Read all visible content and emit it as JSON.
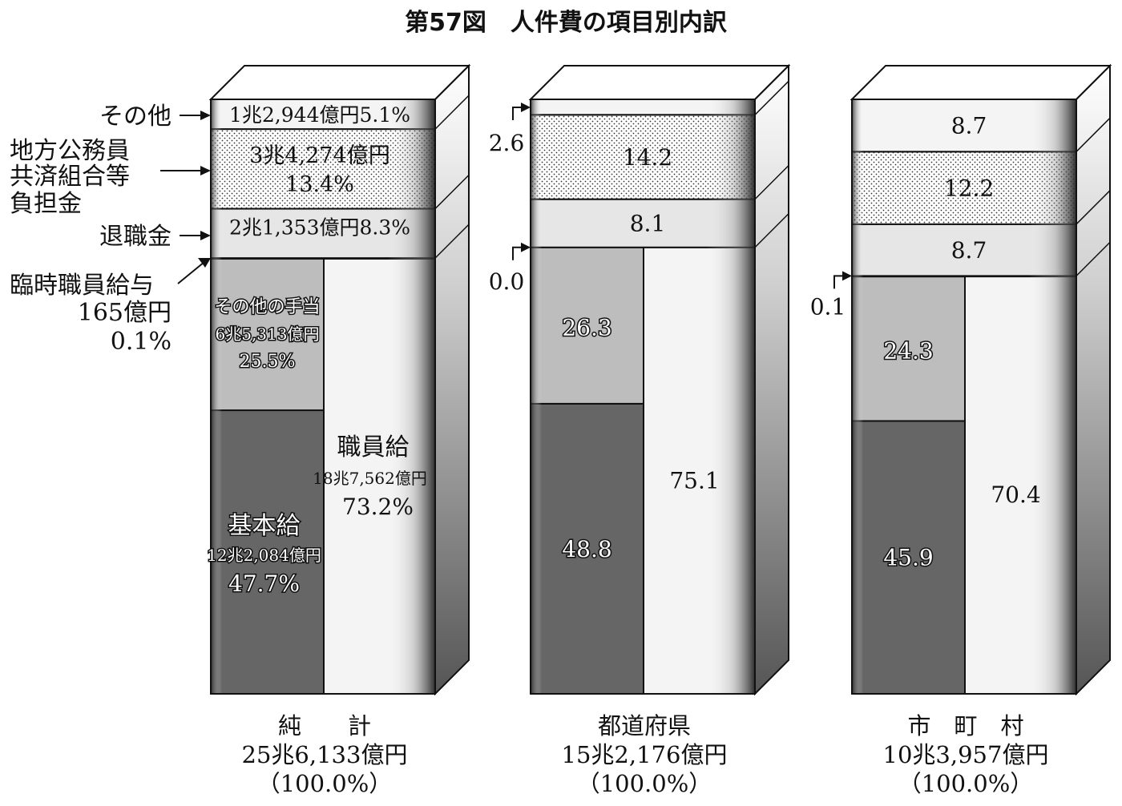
{
  "chart_data": {
    "type": "stacked-bar-3d",
    "title": "第57図　人件費の項目別内訳",
    "columns": [
      {
        "name_line1": "純　　計",
        "name_line2": "25兆6,133億円",
        "name_line3": "（100.0%）",
        "segments": [
          {
            "key": "kihonkyu",
            "value": 47.7,
            "label": "基本給",
            "amount": "12兆2,084億円",
            "pct": "47.7%"
          },
          {
            "key": "sonota_teate",
            "value": 25.5,
            "label": "その他の手当",
            "amount": "6兆5,313億円",
            "pct": "25.5%"
          },
          {
            "key": "rinji",
            "value": 0.1
          },
          {
            "key": "taishoku",
            "value": 8.3,
            "label": "2兆1,353億円8.3%"
          },
          {
            "key": "kyosai",
            "value": 13.4,
            "label_line1": "3兆4,274億円",
            "label_line2": "13.4%"
          },
          {
            "key": "sonota",
            "value": 5.1,
            "label": "1兆2,944億円5.1%"
          }
        ],
        "shokuinkyu": {
          "value": 73.2,
          "label": "職員給",
          "amount": "18兆7,562億円",
          "pct": "73.2%"
        }
      },
      {
        "name_line1": "都道府県",
        "name_line2": "15兆2,176億円",
        "name_line3": "（100.0%）",
        "segments": [
          {
            "key": "kihonkyu",
            "value": 48.8,
            "label": "48.8"
          },
          {
            "key": "sonota_teate",
            "value": 26.3,
            "label": "26.3"
          },
          {
            "key": "rinji",
            "value": 0.0,
            "label": "0.0"
          },
          {
            "key": "taishoku",
            "value": 8.1,
            "label": "8.1"
          },
          {
            "key": "kyosai",
            "value": 14.2,
            "label": "14.2"
          },
          {
            "key": "sonota",
            "value": 2.6,
            "label": "2.6"
          }
        ],
        "shokuinkyu": {
          "value": 75.1,
          "label": "75.1"
        }
      },
      {
        "name_line1": "市　町　村",
        "name_line2": "10兆3,957億円",
        "name_line3": "（100.0%）",
        "segments": [
          {
            "key": "kihonkyu",
            "value": 45.9,
            "label": "45.9"
          },
          {
            "key": "sonota_teate",
            "value": 24.3,
            "label": "24.3"
          },
          {
            "key": "rinji",
            "value": 0.1,
            "label": "0.1"
          },
          {
            "key": "taishoku",
            "value": 8.7,
            "label": "8.7"
          },
          {
            "key": "kyosai",
            "value": 12.2,
            "label": "12.2"
          },
          {
            "key": "sonota",
            "value": 8.7,
            "label": "8.7"
          }
        ],
        "shokuinkyu": {
          "value": 70.4,
          "label": "70.4"
        }
      }
    ],
    "legend_labels": {
      "sonota": "その他",
      "kyosai_line1": "地方公務員",
      "kyosai_line2": "共済組合等",
      "kyosai_line3": "負担金",
      "taishoku": "退職金",
      "rinji_line1": "臨時職員給与",
      "rinji_line2": "165億円",
      "rinji_line3": "0.1%"
    },
    "colors": {
      "kihonkyu": "#666666",
      "sonota_teate": "#bdbdbd",
      "shokuinkyu": "#f4f4f4",
      "taishoku": "#e6e6e6",
      "kyosai": "#ffffff",
      "sonota": "#f4f4f4",
      "line": "#111111"
    }
  }
}
